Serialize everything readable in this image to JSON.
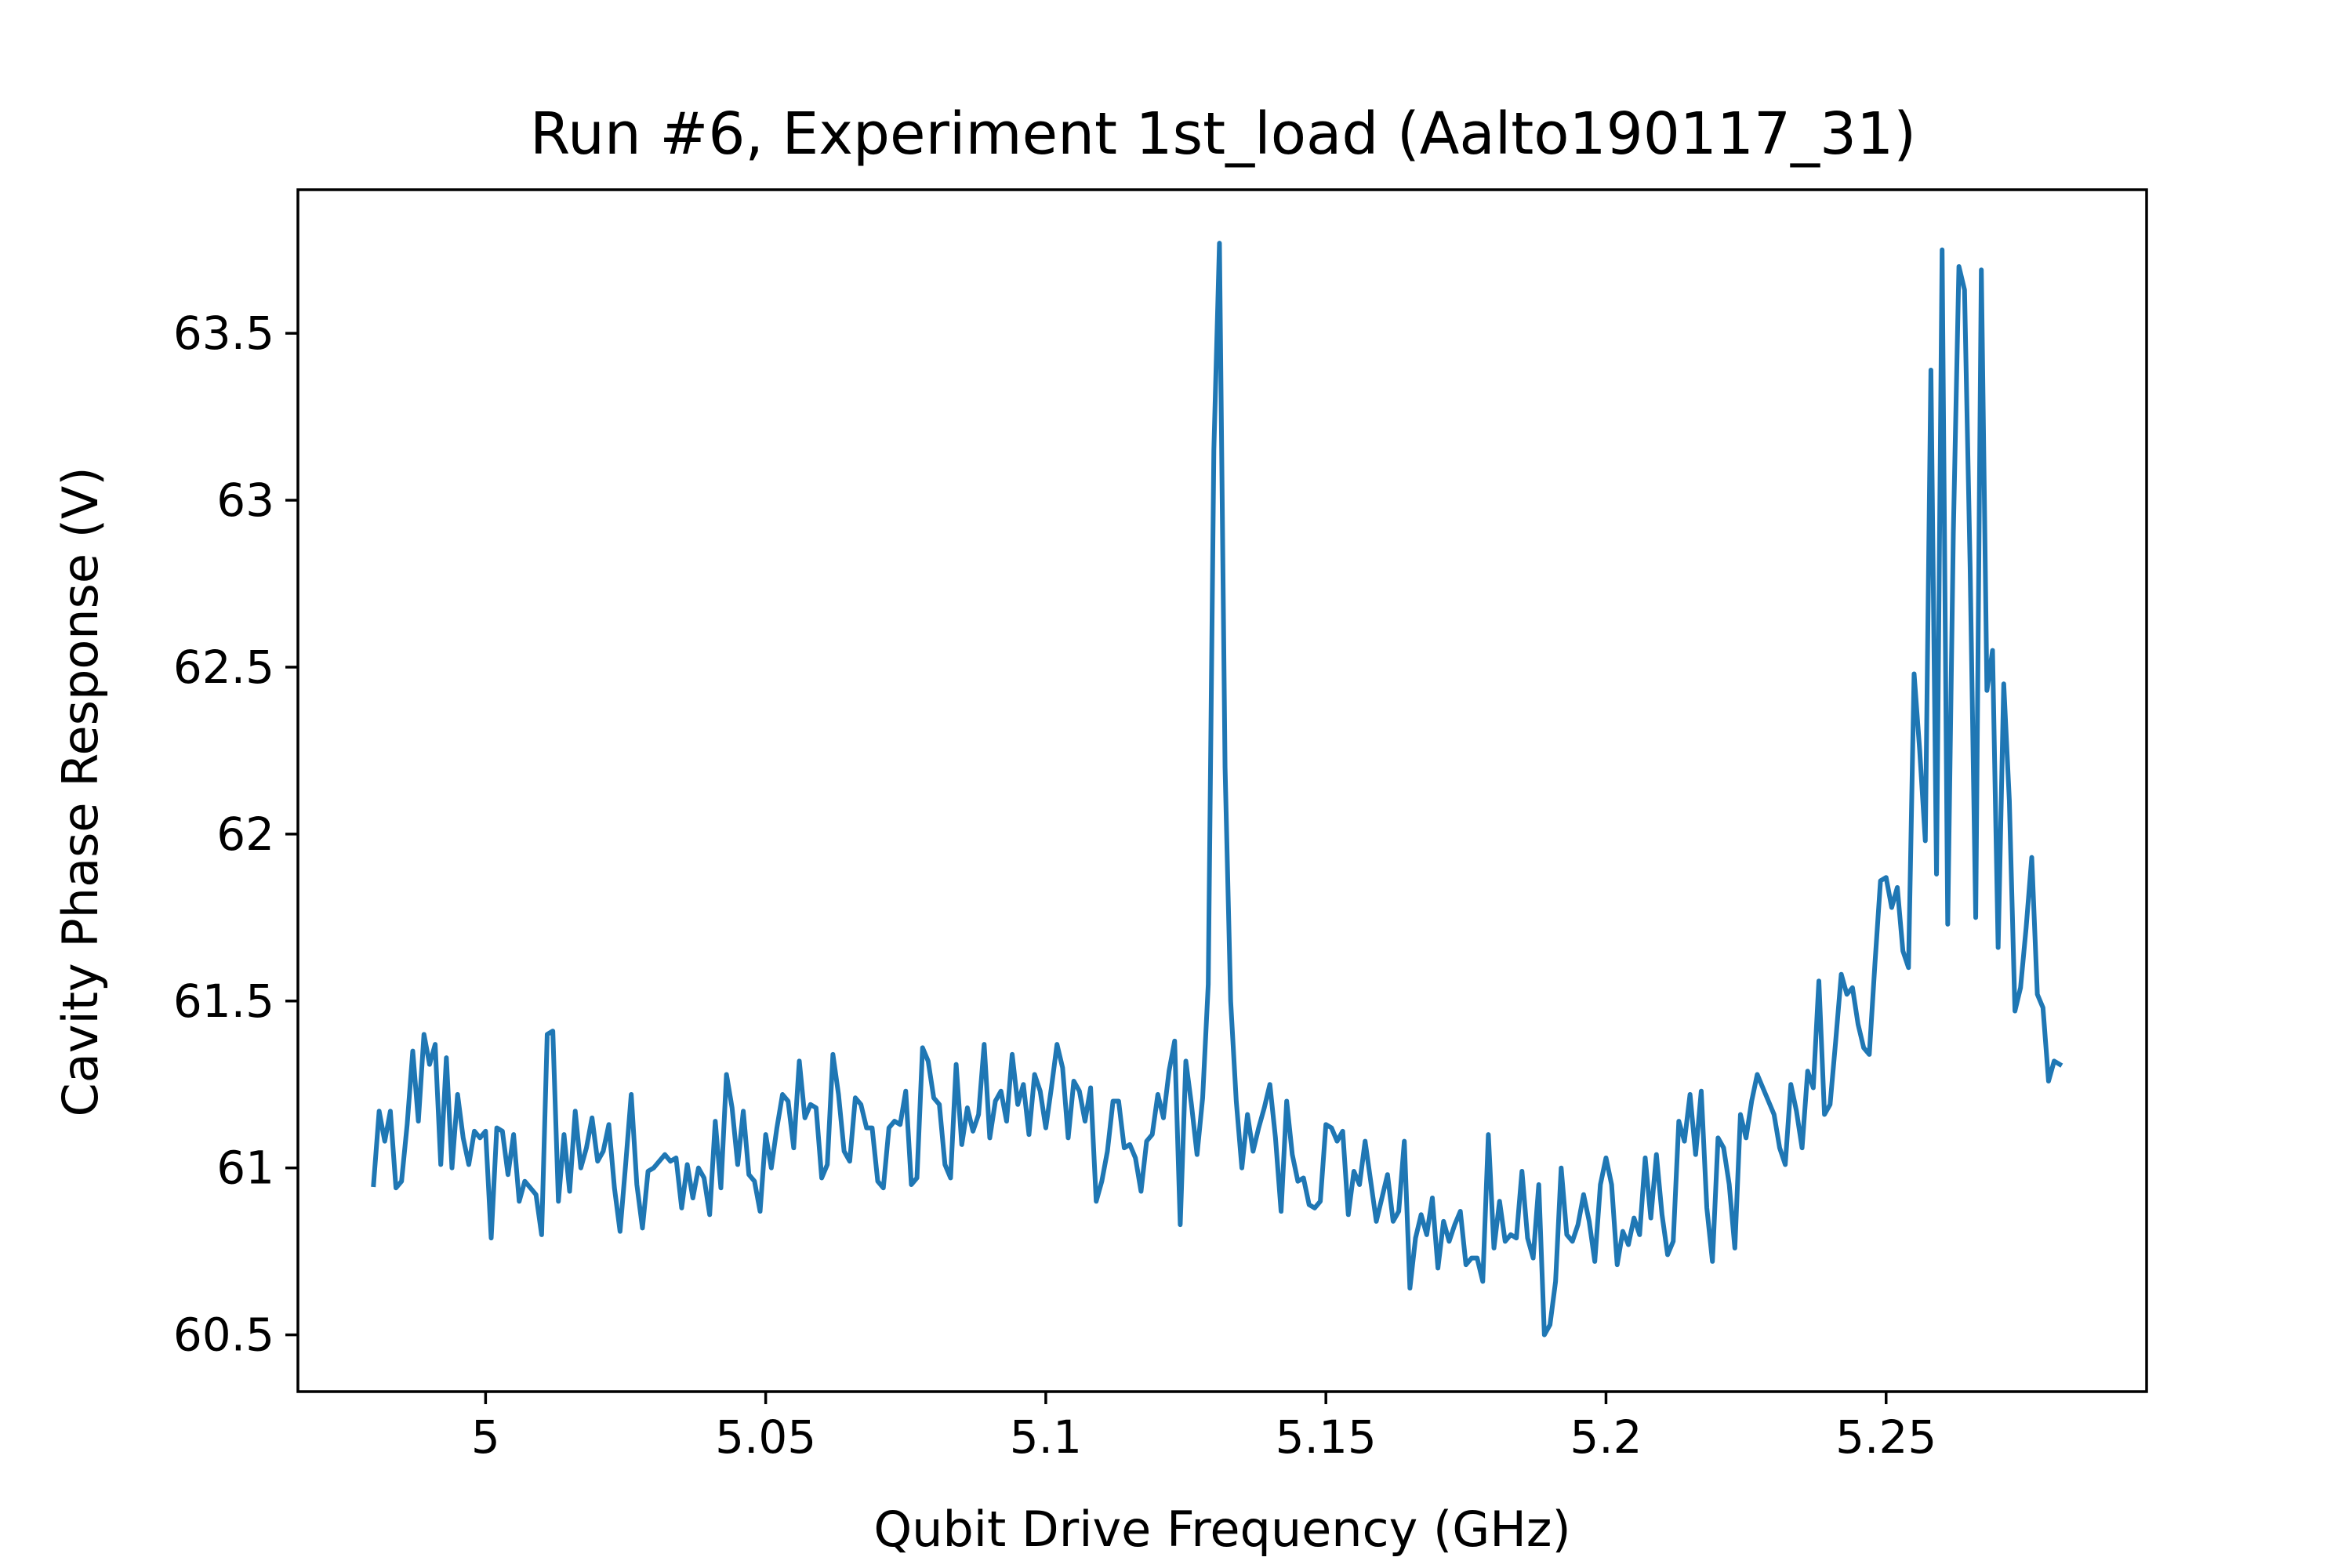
{
  "chart_data": {
    "type": "line",
    "title": "Run #6, Experiment 1st_load (Aalto190117_31)",
    "xlabel": "Qubit Drive Frequency (GHz)",
    "ylabel": "Cavity Phase Response (V)",
    "xlim": [
      4.9665,
      5.2965
    ],
    "ylim": [
      60.33,
      63.93
    ],
    "xticks": [
      5.0,
      5.05,
      5.1,
      5.15,
      5.2,
      5.25
    ],
    "xtick_labels": [
      "5",
      "5.05",
      "5.1",
      "5.15",
      "5.2",
      "5.25"
    ],
    "yticks": [
      60.5,
      61.0,
      61.5,
      62.0,
      62.5,
      63.0,
      63.5
    ],
    "ytick_labels": [
      "60.5",
      "61",
      "61.5",
      "62",
      "62.5",
      "63",
      "63.5"
    ],
    "grid": false,
    "legend": "none",
    "series": [
      {
        "color": "#1f77b4",
        "x_start": 4.98,
        "x_step": 0.001,
        "y": [
          60.95,
          61.17,
          61.08,
          61.17,
          60.94,
          60.96,
          61.13,
          61.35,
          61.14,
          61.4,
          61.31,
          61.37,
          61.01,
          61.33,
          61.0,
          61.22,
          61.09,
          61.01,
          61.11,
          61.09,
          61.11,
          60.79,
          61.12,
          61.11,
          60.98,
          61.1,
          60.9,
          60.96,
          60.94,
          60.92,
          60.8,
          61.4,
          61.41,
          60.9,
          61.1,
          60.93,
          61.17,
          61.0,
          61.06,
          61.15,
          61.02,
          61.05,
          61.13,
          60.94,
          60.81,
          61.01,
          61.22,
          60.95,
          60.82,
          60.99,
          61.0,
          61.02,
          61.04,
          61.02,
          61.03,
          60.88,
          61.01,
          60.91,
          61.0,
          60.97,
          60.86,
          61.14,
          60.94,
          61.28,
          61.18,
          61.01,
          61.17,
          60.98,
          60.96,
          60.87,
          61.1,
          61.0,
          61.12,
          61.22,
          61.2,
          61.06,
          61.32,
          61.15,
          61.19,
          61.18,
          60.97,
          61.01,
          61.34,
          61.22,
          61.05,
          61.02,
          61.21,
          61.19,
          61.12,
          61.12,
          60.96,
          60.94,
          61.12,
          61.14,
          61.13,
          61.23,
          60.95,
          60.97,
          61.36,
          61.32,
          61.21,
          61.19,
          61.01,
          60.97,
          61.31,
          61.07,
          61.18,
          61.11,
          61.16,
          61.37,
          61.09,
          61.2,
          61.23,
          61.14,
          61.34,
          61.19,
          61.25,
          61.1,
          61.28,
          61.23,
          61.12,
          61.24,
          61.37,
          61.3,
          61.09,
          61.26,
          61.23,
          61.14,
          61.24,
          60.9,
          60.96,
          61.05,
          61.2,
          61.2,
          61.06,
          61.07,
          61.03,
          60.93,
          61.08,
          61.1,
          61.22,
          61.15,
          61.29,
          61.38,
          60.83,
          61.32,
          61.19,
          61.04,
          61.21,
          61.55,
          63.15,
          63.77,
          62.2,
          61.5,
          61.2,
          61.0,
          61.16,
          61.05,
          61.12,
          61.18,
          61.25,
          61.09,
          60.87,
          61.2,
          61.04,
          60.96,
          60.97,
          60.89,
          60.88,
          60.9,
          61.13,
          61.12,
          61.08,
          61.11,
          60.86,
          60.99,
          60.95,
          61.08,
          60.96,
          60.84,
          60.91,
          60.98,
          60.84,
          60.87,
          61.08,
          60.64,
          60.79,
          60.86,
          60.8,
          60.91,
          60.7,
          60.84,
          60.78,
          60.83,
          60.87,
          60.71,
          60.73,
          60.73,
          60.66,
          61.1,
          60.76,
          60.9,
          60.78,
          60.8,
          60.79,
          60.99,
          60.79,
          60.73,
          60.95,
          60.5,
          60.53,
          60.66,
          61.0,
          60.8,
          60.78,
          60.83,
          60.92,
          60.84,
          60.72,
          60.95,
          61.03,
          60.95,
          60.71,
          60.81,
          60.77,
          60.85,
          60.8,
          61.03,
          60.85,
          61.04,
          60.86,
          60.74,
          60.78,
          61.14,
          61.08,
          61.22,
          61.04,
          61.23,
          60.88,
          60.72,
          61.09,
          61.06,
          60.95,
          60.76,
          61.16,
          61.09,
          61.2,
          61.28,
          61.24,
          61.2,
          61.16,
          61.06,
          61.01,
          61.25,
          61.17,
          61.06,
          61.29,
          61.24,
          61.56,
          61.16,
          61.19,
          61.38,
          61.58,
          61.52,
          61.54,
          61.43,
          61.36,
          61.34,
          61.61,
          61.86,
          61.87,
          61.78,
          61.84,
          61.65,
          61.6,
          62.48,
          62.25,
          61.98,
          63.39,
          61.88,
          63.75,
          61.73,
          62.9,
          63.7,
          63.63,
          62.8,
          61.75,
          63.69,
          62.43,
          62.55,
          61.66,
          62.45,
          62.1,
          61.47,
          61.54,
          61.72,
          61.93,
          61.52,
          61.48,
          61.26,
          61.32,
          61.31
        ]
      }
    ]
  }
}
